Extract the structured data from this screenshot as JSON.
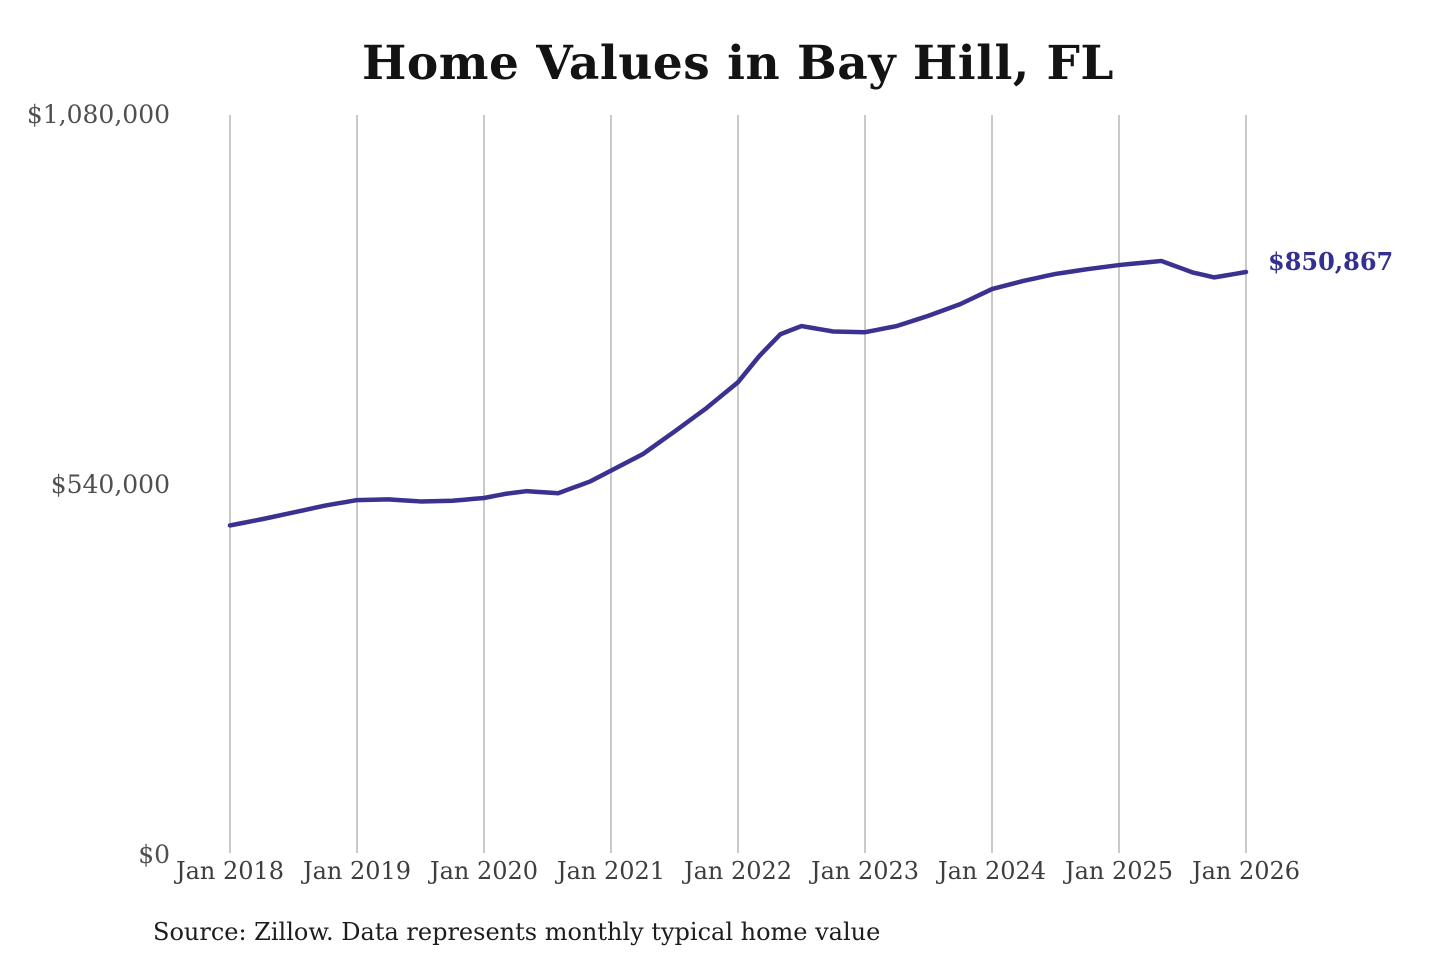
{
  "title": "Home Values in Bay Hill, FL",
  "source_note": "Source: Zillow. Data represents monthly typical home value",
  "colors": {
    "line": "#3a3191",
    "end_label": "#333090",
    "gridline": "#c9c9c9",
    "title_text": "#131313",
    "axis_text": "#4f4f4f"
  },
  "chart_data": {
    "type": "line",
    "title": "Home Values in Bay Hill, FL",
    "xlabel": "",
    "ylabel": "",
    "ylim": [
      0,
      1080000
    ],
    "grid": "vertical-year-lines",
    "legend_position": "none",
    "y_ticks": [
      {
        "value": 1080000,
        "label": "$1,080,000"
      },
      {
        "value": 540000,
        "label": "$540,000"
      },
      {
        "value": 0,
        "label": "$0"
      }
    ],
    "x_ticks": [
      "Jan 2018",
      "Jan 2019",
      "Jan 2020",
      "Jan 2021",
      "Jan 2022",
      "Jan 2023",
      "Jan 2024",
      "Jan 2025",
      "Jan 2026"
    ],
    "end_value": 850867,
    "end_label": "$850,867",
    "series": [
      {
        "name": "Monthly typical home value",
        "interval": "monthly",
        "x_start": "Jan 2018",
        "x_end": "Jan 2026",
        "values": [
          481000,
          484000,
          487000,
          490000,
          493300,
          496700,
          500000,
          503300,
          506700,
          510000,
          512700,
          515300,
          518000,
          518300,
          518700,
          519000,
          518000,
          517000,
          516000,
          516300,
          516700,
          517000,
          518300,
          519700,
          521000,
          524000,
          527000,
          529000,
          531000,
          530000,
          529000,
          528000,
          533700,
          539300,
          545000,
          553000,
          561000,
          569000,
          577000,
          585000,
          596000,
          607000,
          618000,
          629300,
          640700,
          652000,
          664700,
          677300,
          690000,
          709000,
          728000,
          744000,
          760000,
          766000,
          772000,
          769300,
          766700,
          764000,
          763700,
          763300,
          763000,
          766000,
          769000,
          772000,
          777000,
          782000,
          787000,
          792700,
          798300,
          804000,
          811300,
          818700,
          826000,
          830000,
          834000,
          838000,
          841300,
          844700,
          848000,
          850300,
          852700,
          855000,
          857000,
          859000,
          861000,
          862500,
          864000,
          865500,
          867000,
          861300,
          855700,
          850000,
          846500,
          843000,
          845600,
          848200,
          850867
        ]
      }
    ]
  }
}
